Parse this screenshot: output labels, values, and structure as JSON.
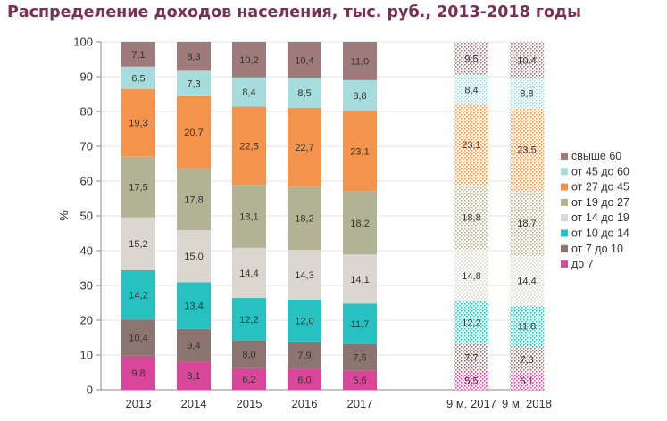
{
  "title": "Распределение доходов населения, тыс. руб., 2013-2018 годы",
  "chart_data": {
    "type": "bar",
    "stacked": true,
    "ylabel": "%",
    "ylim": [
      0,
      100
    ],
    "yticks": [
      0,
      10,
      20,
      30,
      40,
      50,
      60,
      70,
      80,
      90,
      100
    ],
    "legend_position": "right",
    "categories": [
      "2013",
      "2014",
      "2015",
      "2016",
      "2017",
      "9 м. 2017",
      "9 м. 2018"
    ],
    "hatched_categories": [
      "9 м. 2017",
      "9 м. 2018"
    ],
    "series": [
      {
        "name": "до 7",
        "color": "#d9479a",
        "values": [
          9.8,
          8.1,
          6.2,
          6.0,
          5.6,
          5.5,
          5.1
        ],
        "labels": [
          "9,8",
          "8,1",
          "6,2",
          "6,0",
          "5,6",
          "5,5",
          "5,1"
        ]
      },
      {
        "name": "от 7 до 10",
        "color": "#8c7570",
        "values": [
          10.4,
          9.4,
          8.0,
          7.9,
          7.5,
          7.7,
          7.3
        ],
        "labels": [
          "10,4",
          "9,4",
          "8,0",
          "7,9",
          "7,5",
          "7,7",
          "7,3"
        ]
      },
      {
        "name": "от 10 до 14",
        "color": "#26c1c0",
        "values": [
          14.2,
          13.4,
          12.2,
          12.0,
          11.7,
          12.2,
          11.8
        ],
        "labels": [
          "14,2",
          "13,4",
          "12,2",
          "12,0",
          "11,7",
          "12,2",
          "11,8"
        ]
      },
      {
        "name": "от 14 до 19",
        "color": "#dcd6d0",
        "values": [
          15.2,
          15.0,
          14.4,
          14.3,
          14.1,
          14.8,
          14.4
        ],
        "labels": [
          "15,2",
          "15,0",
          "14,4",
          "14,3",
          "14,1",
          "14,8",
          "14,4"
        ]
      },
      {
        "name": "от 19 до 27",
        "color": "#b2b295",
        "values": [
          17.5,
          17.8,
          18.1,
          18.2,
          18.2,
          18.8,
          18.7
        ],
        "labels": [
          "17,5",
          "17,8",
          "18,1",
          "18,2",
          "18,2",
          "18,8",
          "18,7"
        ]
      },
      {
        "name": "от 27 до 45",
        "color": "#f4934b",
        "values": [
          19.3,
          20.7,
          22.5,
          22.7,
          23.1,
          23.1,
          23.5
        ],
        "labels": [
          "19,3",
          "20,7",
          "22,5",
          "22,7",
          "23,1",
          "23,1",
          "23,5"
        ]
      },
      {
        "name": "от 45 до 60",
        "color": "#a6dcdc",
        "values": [
          6.5,
          7.3,
          8.4,
          8.5,
          8.8,
          8.4,
          8.8
        ],
        "labels": [
          "6,5",
          "7,3",
          "8,4",
          "8,5",
          "8,8",
          "8,4",
          "8,8"
        ]
      },
      {
        "name": "свыше 60",
        "color": "#9e7a7a",
        "values": [
          7.1,
          8.3,
          10.2,
          10.4,
          11.0,
          9.5,
          10.4
        ],
        "labels": [
          "7,1",
          "8,3",
          "10,2",
          "10,4",
          "11,0",
          "9,5",
          "10,4"
        ]
      }
    ]
  }
}
